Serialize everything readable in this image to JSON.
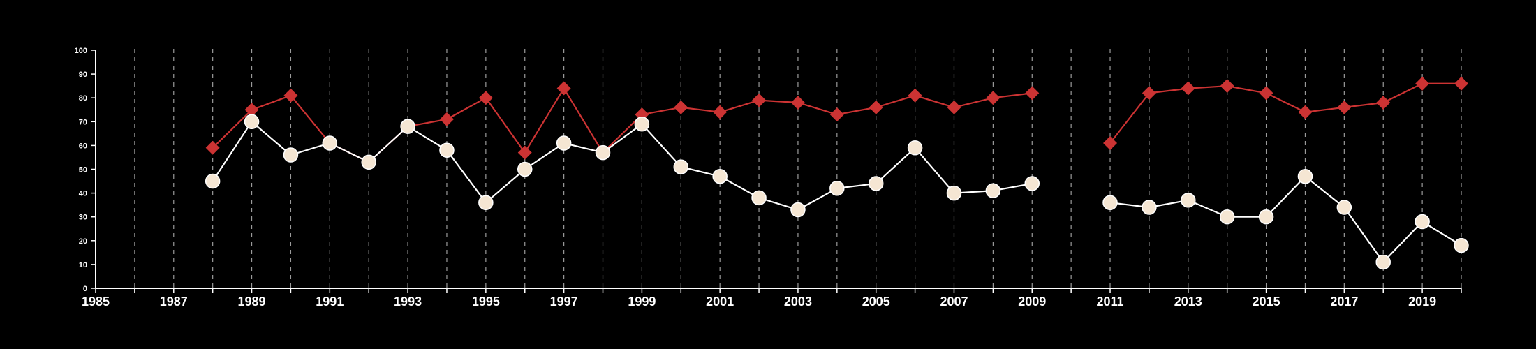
{
  "chart_data": {
    "type": "line",
    "title": "",
    "xlabel": "",
    "ylabel": "",
    "xlim": [
      1985,
      2020
    ],
    "ylim": [
      0,
      100
    ],
    "x_ticks": [
      1985,
      1987,
      1989,
      1991,
      1993,
      1995,
      1997,
      1999,
      2001,
      2003,
      2005,
      2007,
      2009,
      2011,
      2013,
      2015,
      2017,
      2019
    ],
    "x_tick_labels": [
      "1985",
      "1987",
      "1989",
      "1991",
      "1993",
      "1995",
      "1997",
      "1999",
      "2001",
      "2003",
      "2005",
      "2007",
      "2009",
      "2011",
      "2013",
      "2015",
      "2017",
      "2019"
    ],
    "y_ticks": [
      0,
      10,
      20,
      30,
      40,
      50,
      60,
      70,
      80,
      90,
      100
    ],
    "y_tick_labels": [
      "0",
      "10",
      "20",
      "30",
      "40",
      "50",
      "60",
      "70",
      "80",
      "90",
      "100"
    ],
    "grid": "vertical dashed lines at every year",
    "legend": "none",
    "series": [
      {
        "color": "#cc3333",
        "marker": "diamond",
        "x": [
          1988,
          1989,
          1990,
          1991,
          1992,
          1993,
          1994,
          1995,
          1996,
          1997,
          1998,
          1999,
          2000,
          2001,
          2002,
          2003,
          2004,
          2005,
          2006,
          2007,
          2008,
          2009,
          2011,
          2012,
          2013,
          2014,
          2015,
          2016,
          2017,
          2018,
          2019,
          2020
        ],
        "values": [
          59,
          75,
          81,
          61,
          53,
          68,
          71,
          80,
          57,
          84,
          57,
          73,
          76,
          74,
          79,
          78,
          73,
          76,
          81,
          76,
          80,
          82,
          61,
          82,
          84,
          85,
          82,
          74,
          76,
          78,
          86,
          86
        ]
      },
      {
        "color": "#ffffff",
        "marker": "circle",
        "marker_fill": "#f5e6d3",
        "x": [
          1988,
          1989,
          1990,
          1991,
          1992,
          1993,
          1994,
          1995,
          1996,
          1997,
          1998,
          1999,
          2000,
          2001,
          2002,
          2003,
          2004,
          2005,
          2006,
          2007,
          2008,
          2009,
          2011,
          2012,
          2013,
          2014,
          2015,
          2016,
          2017,
          2018,
          2019,
          2020
        ],
        "values": [
          45,
          70,
          56,
          61,
          53,
          68,
          58,
          36,
          50,
          61,
          57,
          69,
          51,
          47,
          38,
          33,
          42,
          44,
          59,
          40,
          41,
          44,
          36,
          34,
          37,
          30,
          30,
          47,
          34,
          11,
          28,
          18
        ]
      }
    ]
  }
}
